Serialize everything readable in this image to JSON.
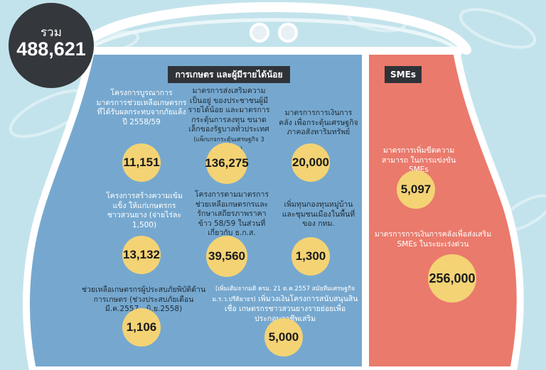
{
  "colors": {
    "background": "#c3e3ec",
    "purse_outline": "#ffffff",
    "left_panel": "#76a8cf",
    "right_panel": "#ea7a6c",
    "bubble": "#f4d375",
    "banner": "#2f3338",
    "total_circle": "#34373c"
  },
  "total": {
    "label": "รวม",
    "value": "488,621"
  },
  "banners": {
    "agri": "การเกษตร และผู้มีรายได้น้อย",
    "smes": "SMEs"
  },
  "items": [
    {
      "text": "โครงการบูรณาการ มาตรการช่วยเหลือเกษตรกร ที่ได้รับผลกระทบจากภัยแล้ง ปี 2558/59",
      "value": "11,151"
    },
    {
      "text": "มาตรการส่งเสริมความเป็นอยู่ ของประชาชนผู้มีรายได้น้อย และมาตรการกระตุ้นการลงทุน ขนาดเล็กของรัฐบาลทั่วประเทศ",
      "note": "(แพ็กเกจกระตุ้นเศรษฐกิจ 3 มาตรการ)",
      "value": "136,275"
    },
    {
      "text": "มาตรการการเงินการคลัง เพื่อกระตุ้นเศรษฐกิจ ภาคอสังหาริมทรัพย์",
      "value": "20,000"
    },
    {
      "text": "โครงการสร้างความเข้มแข็ง ให้แก่เกษตรกรชาวสวนยาง (จ่ายไร่ละ 1,500)",
      "value": "13,132"
    },
    {
      "text": "โครงการตามมาตรการ ช่วยเหลือเกษตรกรและ รักษาเสถียรภาพราคาข้าว 58/59 ในส่วนที่เกี่ยวกับ ธ.ก.ส.",
      "value": "39,560"
    },
    {
      "text": "เพิ่มทุนกองทุนหมู่บ้าน และชุมชนเมืองในพื้นที่ ของ กทม.",
      "value": "1,300"
    },
    {
      "text": "ช่วยเหลือเกษตรกรผู้ประสบภัยพิบัติด้านการเกษตร (ช่วงประสบภัยเดือน มี.ค.2557 - มิ.ย.2558)",
      "value": "1,106"
    },
    {
      "note": "(เพิ่มเติมจากมติ ครม. 21 ต.ค.2557 สมัยทีมเศรษฐกิจ ม.ร.ว.ปรีดิยาธร)",
      "text": "เพิ่มวงเงินโครงการสนับสนุนสินเชื่อ เกษตรกรชาวสวนยางรายย่อยเพื่อประกอบอาชีพเสริม",
      "value": "5,000"
    },
    {
      "text": "มาตรการเพิ่มขีดความสามารถ ในการแข่งขัน SMEs",
      "value": "5,097"
    },
    {
      "text": "มาตรการการเงินการคลังเพื่อส่งเสริม SMEs ในระยะเร่งด่วน",
      "value": "256,000"
    }
  ]
}
